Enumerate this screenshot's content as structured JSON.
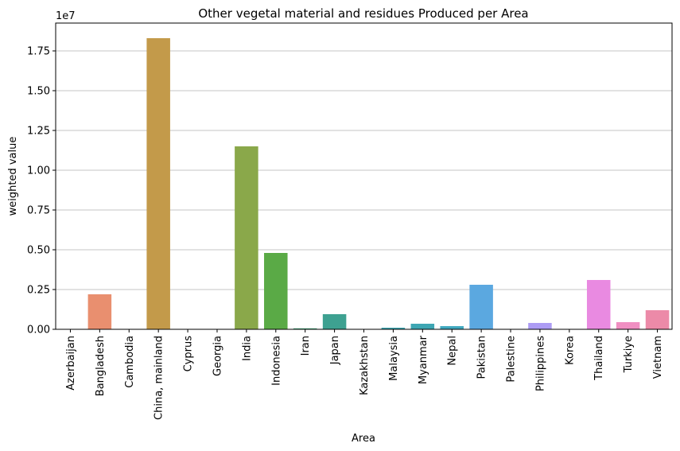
{
  "chart_data": {
    "type": "bar",
    "title": "Other vegetal material and residues Produced per Area",
    "xlabel": "Area",
    "ylabel": "weighted value",
    "y_offset_text": "1e7",
    "ylim": [
      0,
      19250000
    ],
    "yticks": [
      0,
      2500000,
      5000000,
      7500000,
      10000000,
      12500000,
      15000000,
      17500000
    ],
    "ytick_labels": [
      "0.00",
      "0.25",
      "0.50",
      "0.75",
      "1.00",
      "1.25",
      "1.50",
      "1.75"
    ],
    "grid": "horizontal",
    "categories": [
      "Azerbaijan",
      "Bangladesh",
      "Cambodia",
      "China, mainland",
      "Cyprus",
      "Georgia",
      "India",
      "Indonesia",
      "Iran",
      "Japan",
      "Kazakhstan",
      "Malaysia",
      "Myanmar",
      "Nepal",
      "Pakistan",
      "Palestine",
      "Philippines",
      "Korea",
      "Thailand",
      "Turkiye",
      "Vietnam"
    ],
    "values": [
      10000,
      2200000,
      10000,
      18300000,
      5000,
      10000,
      11500000,
      4800000,
      60000,
      950000,
      10000,
      100000,
      350000,
      200000,
      2800000,
      5000,
      400000,
      10000,
      3100000,
      450000,
      1200000
    ],
    "colors": [
      "#f77189",
      "#e98f6f",
      "#d8a35e",
      "#c39a4a",
      "#b0a040",
      "#9fa83e",
      "#8aa84a",
      "#5aaa46",
      "#3aa776",
      "#3ea191",
      "#3fa1a6",
      "#3ba3ae",
      "#3ea6b3",
      "#41a9c0",
      "#5ba8e0",
      "#8aa3e9",
      "#ad9cf4",
      "#cc8ef5",
      "#e98ae1",
      "#f08fc2",
      "#ec8aa8"
    ]
  }
}
